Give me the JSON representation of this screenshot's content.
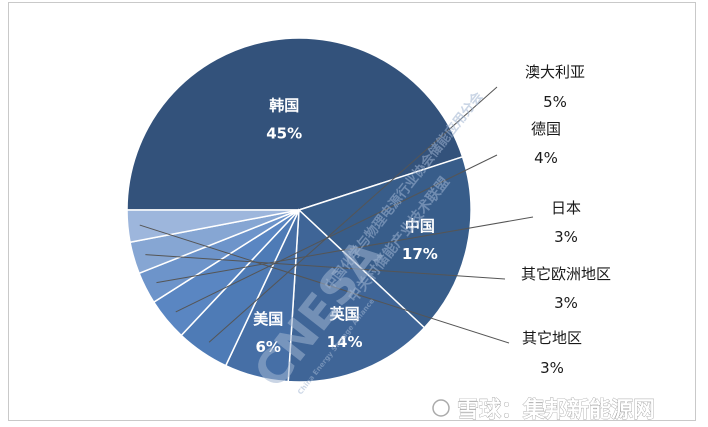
{
  "chart_data": {
    "type": "pie",
    "title": "",
    "slices": [
      {
        "label": "韩国",
        "value": 45,
        "pct_label": "45%",
        "color": "#33527b",
        "label_pos": "inside"
      },
      {
        "label": "中国",
        "value": 17,
        "pct_label": "17%",
        "color": "#385d8a",
        "label_pos": "inside"
      },
      {
        "label": "英国",
        "value": 14,
        "pct_label": "14%",
        "color": "#3f6597",
        "label_pos": "inside"
      },
      {
        "label": "美国",
        "value": 6,
        "pct_label": "6%",
        "color": "#466fa6",
        "label_pos": "inside"
      },
      {
        "label": "澳大利亚",
        "value": 5,
        "pct_label": "5%",
        "color": "#4e7bb6",
        "label_pos": "outside"
      },
      {
        "label": "德国",
        "value": 4,
        "pct_label": "4%",
        "color": "#5a86c2",
        "label_pos": "outside"
      },
      {
        "label": "日本",
        "value": 3,
        "pct_label": "3%",
        "color": "#6d94ca",
        "label_pos": "outside"
      },
      {
        "label": "其它欧洲地区",
        "value": 3,
        "pct_label": "3%",
        "color": "#86a6d3",
        "label_pos": "outside"
      },
      {
        "label": "其它地区",
        "value": 3,
        "pct_label": "3%",
        "color": "#9db6dc",
        "label_pos": "outside"
      }
    ]
  },
  "watermark": {
    "logo_text": "CNESA",
    "org_line1": "中国化学与物理电源行业协会储能应用分会",
    "org_line2": "中关村储能产业技术联盟",
    "org_line3": "China Energy Storage Alliance"
  },
  "footer": {
    "source_text": "雪球：集邦新能源网"
  }
}
